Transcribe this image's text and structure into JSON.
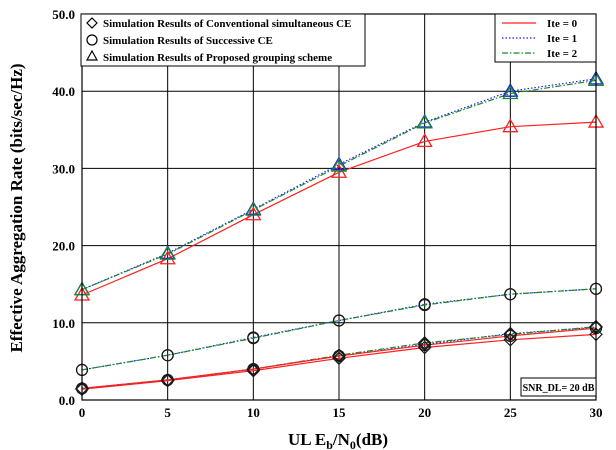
{
  "chart_data": {
    "type": "line",
    "x": [
      0,
      5,
      10,
      15,
      20,
      25,
      30
    ],
    "xlim": [
      0,
      30
    ],
    "ylim": [
      0,
      50
    ],
    "grid": true,
    "xticks": [
      "0",
      "5",
      "10",
      "15",
      "20",
      "25",
      "30"
    ],
    "yticks": [
      "0.0",
      "10.0",
      "20.0",
      "30.0",
      "40.0",
      "50.0"
    ],
    "xlabel": {
      "pre": "UL E",
      "sub1": "b",
      "mid": "/N",
      "sub2": "0",
      "post": "(dB)"
    },
    "ylabel": "Effective Aggregation Rate (bits/sec/Hz)",
    "colors": {
      "ite0": "#ff2020",
      "ite1": "#1a1aff",
      "ite2": "#1a8a2a",
      "marker": "#1a1a1a"
    },
    "series": [
      {
        "name": "Ite = 0",
        "scheme": "conventional",
        "values": [
          1.4,
          2.5,
          3.8,
          5.4,
          6.8,
          7.8,
          8.5
        ]
      },
      {
        "name": "Ite = 1",
        "scheme": "conventional",
        "values": [
          1.5,
          2.6,
          4.0,
          5.7,
          7.2,
          8.6,
          9.4
        ]
      },
      {
        "name": "Ite = 2",
        "scheme": "conventional",
        "values": [
          1.5,
          2.6,
          4.0,
          5.8,
          7.4,
          8.5,
          9.5
        ]
      },
      {
        "name": "Ite = 0",
        "scheme": "successive",
        "values": [
          1.5,
          2.6,
          4.0,
          5.7,
          7.1,
          8.3,
          9.3
        ]
      },
      {
        "name": "Ite = 1",
        "scheme": "successive",
        "values": [
          3.9,
          5.8,
          8.1,
          10.3,
          12.4,
          13.7,
          14.4
        ]
      },
      {
        "name": "Ite = 2",
        "scheme": "successive",
        "values": [
          3.9,
          5.8,
          8.0,
          10.3,
          12.3,
          13.7,
          14.4
        ]
      },
      {
        "name": "Ite = 0",
        "scheme": "proposed",
        "values": [
          13.6,
          18.3,
          24.0,
          29.5,
          33.5,
          35.4,
          36.0
        ]
      },
      {
        "name": "Ite = 1",
        "scheme": "proposed",
        "values": [
          14.3,
          19.0,
          24.7,
          30.5,
          36.0,
          40.0,
          41.6
        ]
      },
      {
        "name": "Ite = 2",
        "scheme": "proposed",
        "values": [
          14.3,
          18.9,
          24.6,
          30.3,
          35.9,
          39.7,
          41.4
        ]
      }
    ],
    "legend_markers": {
      "entries": [
        {
          "marker": "diamond",
          "label": "Simulation Results of Conventional simultaneous CE"
        },
        {
          "marker": "circle",
          "label": "Simulation Results of Successive CE"
        },
        {
          "marker": "triangle",
          "label": "Simulation Results of Proposed grouping scheme"
        }
      ],
      "placement": "top-left"
    },
    "legend_lines": {
      "entries": [
        "Ite = 0",
        "Ite = 1",
        "Ite = 2"
      ],
      "placement": "top-right"
    },
    "annotation": "SNR_DL= 20 dB"
  }
}
